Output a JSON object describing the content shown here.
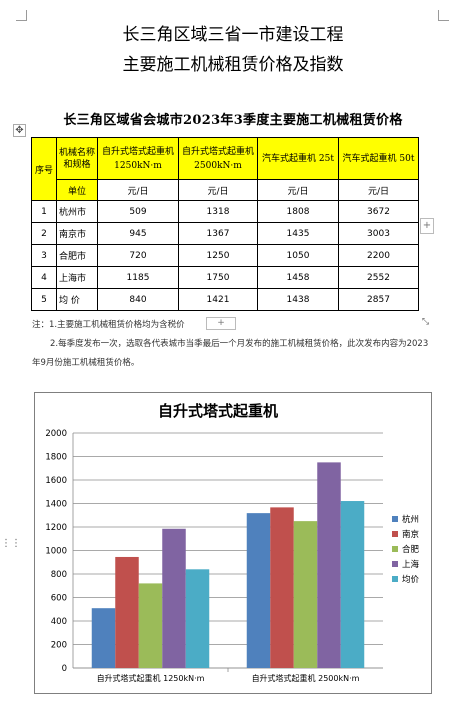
{
  "doc": {
    "title_line1": "长三角区域三省一市建设工程",
    "title_line2": "主要施工机械租赁价格及指数"
  },
  "table": {
    "title": "长三角区域省会城市2023年3季度主要施工机械租赁价格",
    "header": {
      "seq": "序号",
      "name": "机械名称和规格",
      "unit_label": "单位",
      "categories": [
        "自升式塔式起重机  1250kN·m",
        "自升式塔式起重机  2500kN·m",
        "汽车式起重机  25t",
        "汽车式起重机  50t"
      ],
      "units": [
        "元/日",
        "元/日",
        "元/日",
        "元/日"
      ]
    },
    "rows": [
      {
        "seq": "1",
        "city": "杭州市",
        "values": [
          "509",
          "1318",
          "1808",
          "3672"
        ]
      },
      {
        "seq": "2",
        "city": "南京市",
        "values": [
          "945",
          "1367",
          "1435",
          "3003"
        ]
      },
      {
        "seq": "3",
        "city": "合肥市",
        "values": [
          "720",
          "1250",
          "1050",
          "2200"
        ]
      },
      {
        "seq": "4",
        "city": "上海市",
        "values": [
          "1185",
          "1750",
          "1458",
          "2552"
        ]
      },
      {
        "seq": "5",
        "city": "均  价",
        "values": [
          "840",
          "1421",
          "1438",
          "2857"
        ]
      }
    ]
  },
  "notes": {
    "note1": "注：1.主要施工机械租赁价格均为含税价",
    "note2": "2.每季度发布一次，选取各代表城市当季最后一个月发布的施工机械租赁价格，此次发布内容为2023年9月份施工机械租赁价格。"
  },
  "ui": {
    "move_icon": "✥",
    "plus": "+",
    "resize_icon": "⤡",
    "grip_icon": "⋮⋮"
  },
  "chart_data": {
    "type": "bar",
    "title": "自升式塔式起重机",
    "categories": [
      "自升式塔式起重机  1250kN·m",
      "自升式塔式起重机  2500kN·m"
    ],
    "series": [
      {
        "name": "杭州",
        "color": "#4f81bd",
        "values": [
          509,
          1318
        ]
      },
      {
        "name": "南京",
        "color": "#c0504d",
        "values": [
          945,
          1367
        ]
      },
      {
        "name": "合肥",
        "color": "#9bbb59",
        "values": [
          720,
          1250
        ]
      },
      {
        "name": "上海",
        "color": "#8064a2",
        "values": [
          1185,
          1750
        ]
      },
      {
        "name": "均价",
        "color": "#4bacc6",
        "values": [
          840,
          1421
        ]
      }
    ],
    "ylim": [
      0,
      2000
    ],
    "yticks": [
      0,
      200,
      400,
      600,
      800,
      1000,
      1200,
      1400,
      1600,
      1800,
      2000
    ],
    "grid": true,
    "legend": "right"
  }
}
